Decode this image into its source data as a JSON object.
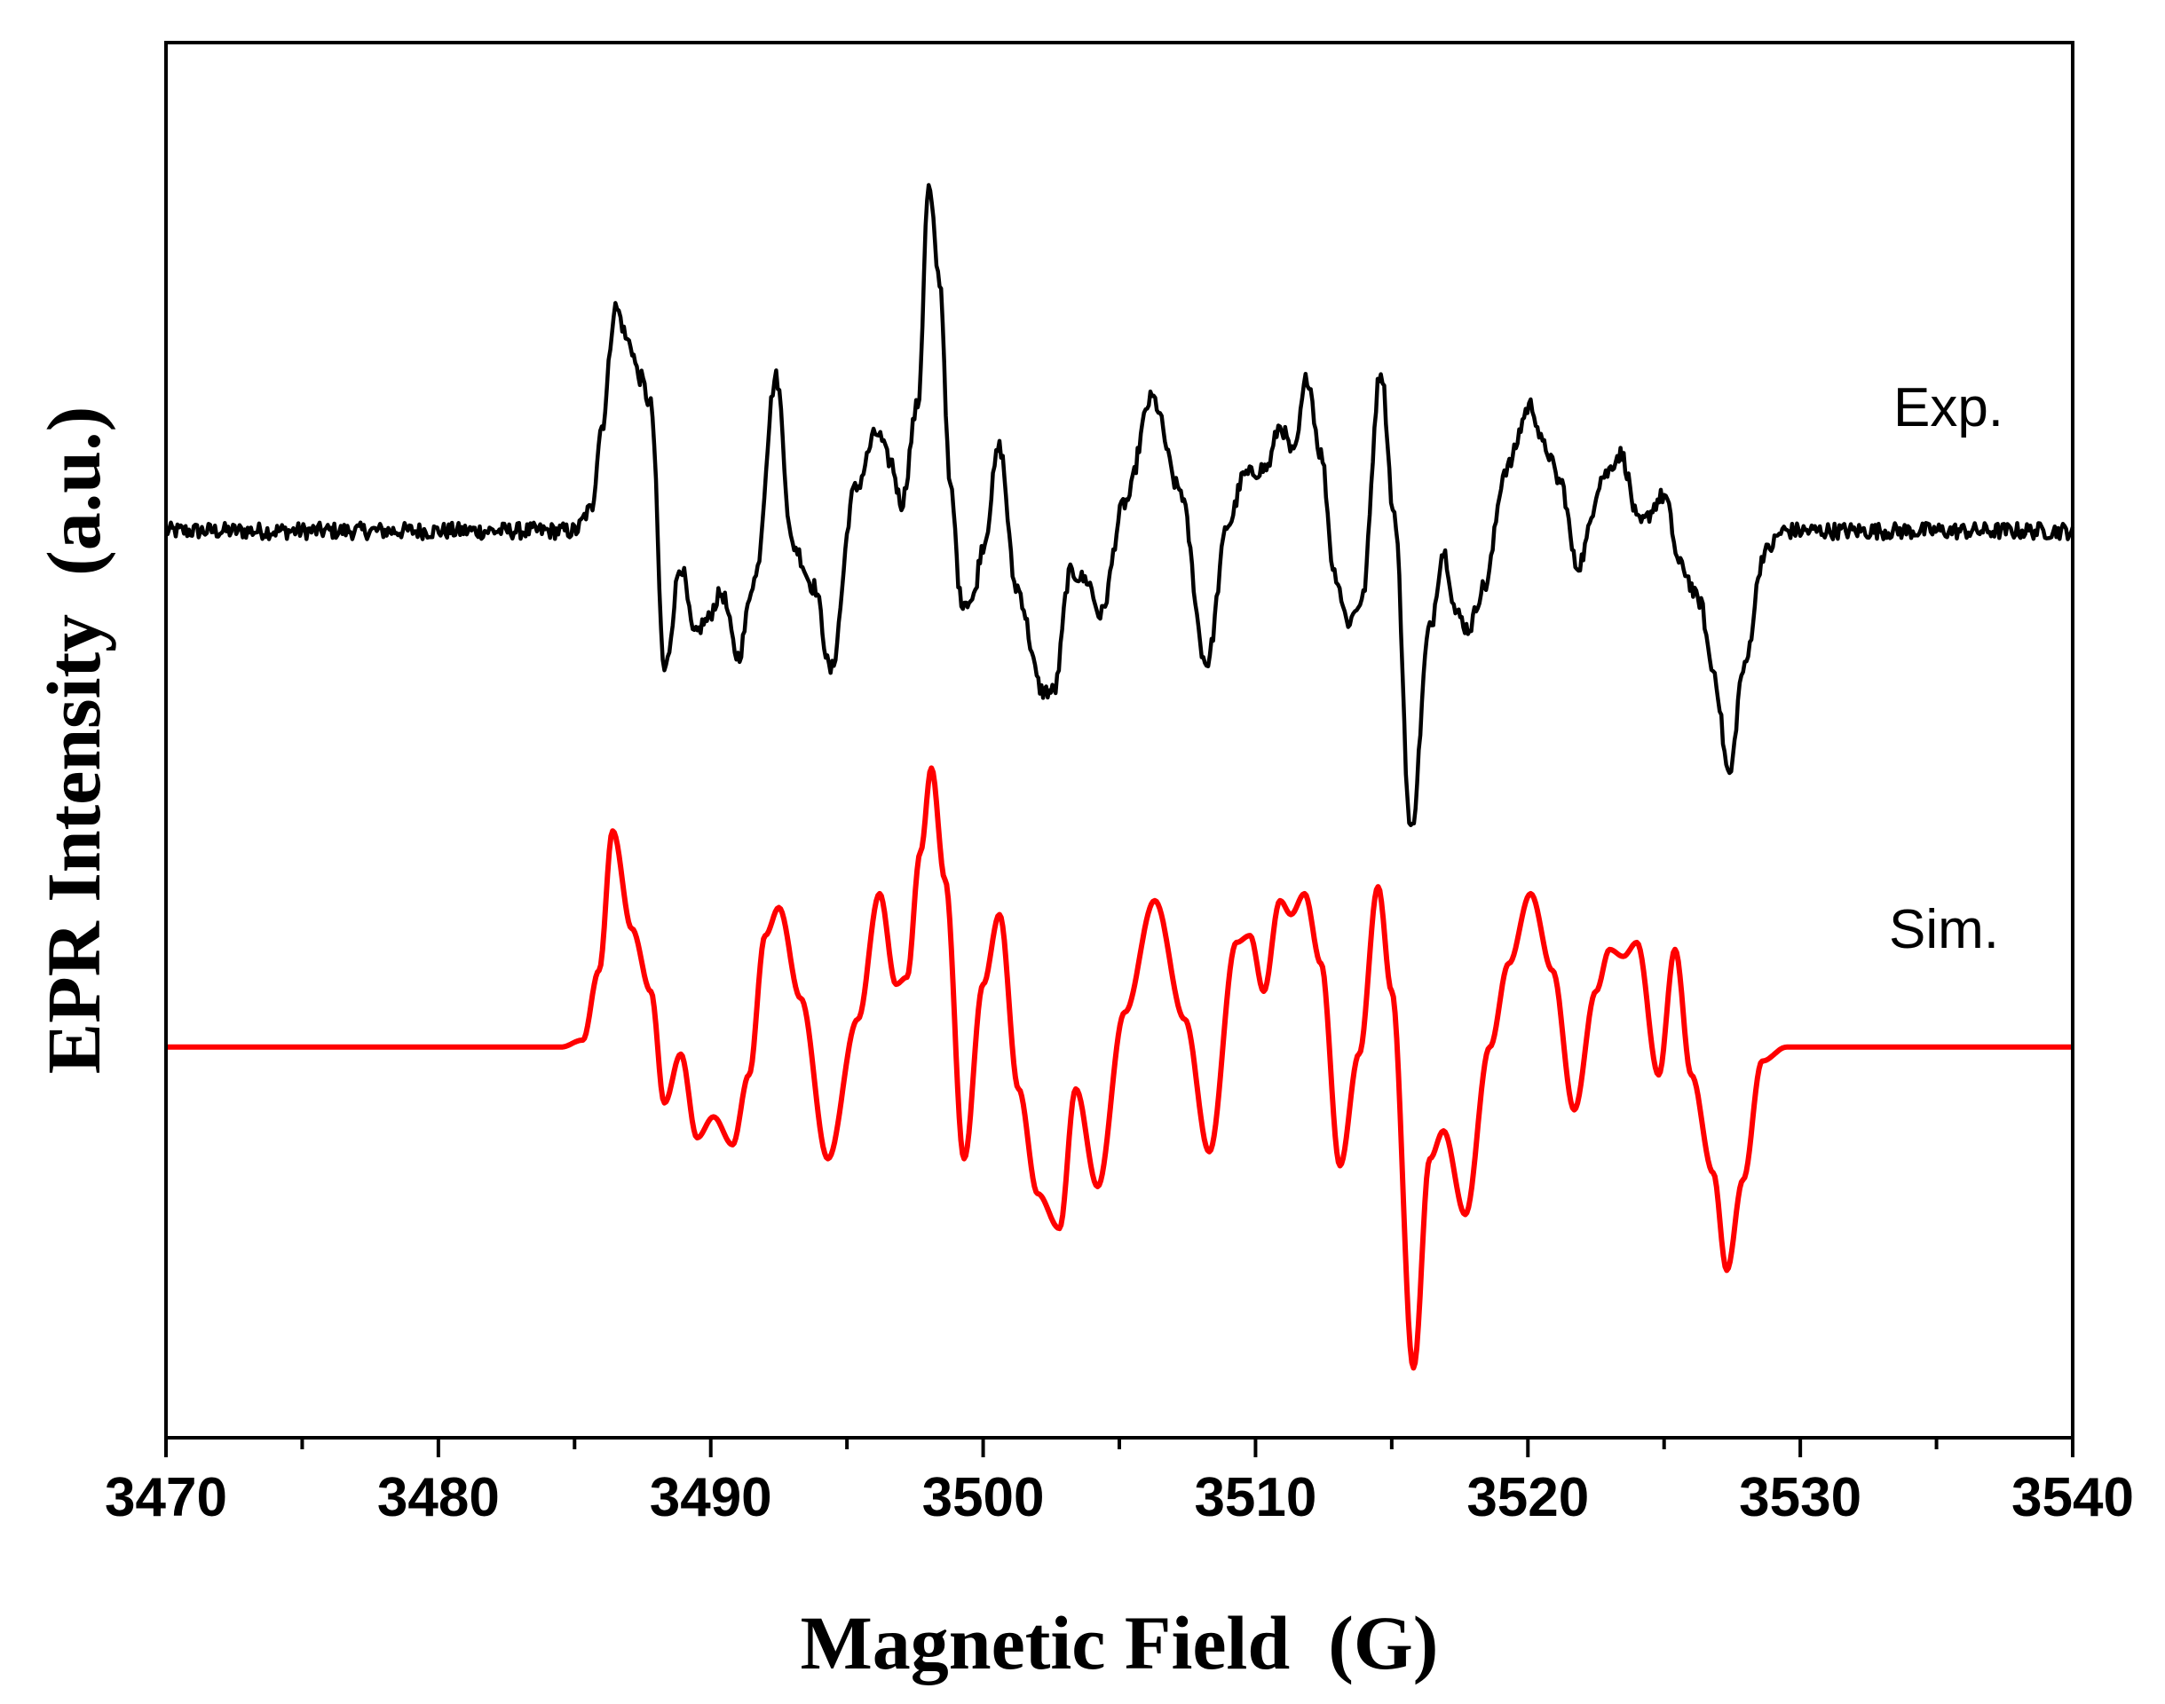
{
  "chart_data": {
    "type": "line",
    "title": "",
    "xlabel": "Magnetic Field  (G)",
    "ylabel": "EPR Intensity  (a.u.)",
    "xlim": [
      3470,
      3540
    ],
    "ylim": [
      -1.0,
      1.0
    ],
    "xticks": [
      3470,
      3480,
      3490,
      3500,
      3510,
      3520,
      3530,
      3540
    ],
    "minor_tick_step": 5,
    "y_ticks_shown": false,
    "grid": false,
    "series": [
      {
        "name": "Exp.",
        "color": "#000000",
        "baseline": 0.3,
        "noise": 0.012,
        "points": [
          [
            3470,
            0.3
          ],
          [
            3485.0,
            0.3
          ],
          [
            3485.6,
            0.33
          ],
          [
            3486.0,
            0.45
          ],
          [
            3486.5,
            0.62
          ],
          [
            3487.0,
            0.57
          ],
          [
            3487.4,
            0.52
          ],
          [
            3487.8,
            0.48
          ],
          [
            3488.3,
            0.1
          ],
          [
            3488.9,
            0.25
          ],
          [
            3489.4,
            0.15
          ],
          [
            3489.8,
            0.17
          ],
          [
            3490.4,
            0.21
          ],
          [
            3491.0,
            0.12
          ],
          [
            3491.6,
            0.23
          ],
          [
            3492.4,
            0.52
          ],
          [
            3493.0,
            0.28
          ],
          [
            3493.8,
            0.22
          ],
          [
            3494.4,
            0.1
          ],
          [
            3495.3,
            0.36
          ],
          [
            3496.1,
            0.44
          ],
          [
            3496.6,
            0.4
          ],
          [
            3497.0,
            0.34
          ],
          [
            3497.6,
            0.48
          ],
          [
            3498.0,
            0.79
          ],
          [
            3498.4,
            0.66
          ],
          [
            3498.8,
            0.36
          ],
          [
            3499.2,
            0.2
          ],
          [
            3499.6,
            0.2
          ],
          [
            3500.0,
            0.28
          ],
          [
            3500.6,
            0.42
          ],
          [
            3501.2,
            0.22
          ],
          [
            3502.2,
            0.07
          ],
          [
            3502.6,
            0.07
          ],
          [
            3503.2,
            0.24
          ],
          [
            3503.8,
            0.23
          ],
          [
            3504.3,
            0.18
          ],
          [
            3505.2,
            0.34
          ],
          [
            3506.2,
            0.49
          ],
          [
            3507.2,
            0.36
          ],
          [
            3508.2,
            0.11
          ],
          [
            3509.0,
            0.31
          ],
          [
            3509.6,
            0.38
          ],
          [
            3510.4,
            0.39
          ],
          [
            3510.9,
            0.45
          ],
          [
            3511.4,
            0.41
          ],
          [
            3511.9,
            0.52
          ],
          [
            3512.4,
            0.41
          ],
          [
            3512.9,
            0.24
          ],
          [
            3513.4,
            0.17
          ],
          [
            3513.9,
            0.2
          ],
          [
            3514.6,
            0.53
          ],
          [
            3515.1,
            0.32
          ],
          [
            3515.7,
            -0.13
          ],
          [
            3516.4,
            0.16
          ],
          [
            3516.9,
            0.27
          ],
          [
            3517.4,
            0.18
          ],
          [
            3517.8,
            0.16
          ],
          [
            3518.4,
            0.22
          ],
          [
            3519.2,
            0.39
          ],
          [
            3520.1,
            0.48
          ],
          [
            3520.6,
            0.42
          ],
          [
            3521.2,
            0.37
          ],
          [
            3521.8,
            0.25
          ],
          [
            3522.8,
            0.38
          ],
          [
            3523.4,
            0.41
          ],
          [
            3524.1,
            0.31
          ],
          [
            3525.0,
            0.35
          ],
          [
            3525.6,
            0.25
          ],
          [
            3526.3,
            0.2
          ],
          [
            3526.8,
            0.1
          ],
          [
            3527.4,
            -0.05
          ],
          [
            3527.9,
            0.1
          ],
          [
            3528.7,
            0.27
          ],
          [
            3529.4,
            0.3
          ],
          [
            3540,
            0.3
          ]
        ]
      },
      {
        "name": "Sim.",
        "color": "#ff0000",
        "baseline": -0.44,
        "noise": 0,
        "points": [
          [
            3470,
            -0.44
          ],
          [
            3484.5,
            -0.44
          ],
          [
            3485.3,
            -0.43
          ],
          [
            3485.9,
            -0.33
          ],
          [
            3486.4,
            -0.13
          ],
          [
            3487.1,
            -0.27
          ],
          [
            3487.8,
            -0.36
          ],
          [
            3488.3,
            -0.52
          ],
          [
            3488.9,
            -0.45
          ],
          [
            3489.5,
            -0.57
          ],
          [
            3490.1,
            -0.54
          ],
          [
            3490.8,
            -0.58
          ],
          [
            3491.4,
            -0.48
          ],
          [
            3492.0,
            -0.28
          ],
          [
            3492.5,
            -0.24
          ],
          [
            3493.3,
            -0.37
          ],
          [
            3494.3,
            -0.6
          ],
          [
            3495.4,
            -0.4
          ],
          [
            3496.2,
            -0.22
          ],
          [
            3496.8,
            -0.35
          ],
          [
            3497.2,
            -0.34
          ],
          [
            3497.7,
            -0.16
          ],
          [
            3498.1,
            -0.04
          ],
          [
            3498.6,
            -0.2
          ],
          [
            3499.3,
            -0.6
          ],
          [
            3500.0,
            -0.35
          ],
          [
            3500.6,
            -0.25
          ],
          [
            3501.3,
            -0.5
          ],
          [
            3502.0,
            -0.65
          ],
          [
            3502.8,
            -0.7
          ],
          [
            3503.4,
            -0.5
          ],
          [
            3504.2,
            -0.64
          ],
          [
            3505.2,
            -0.39
          ],
          [
            3506.3,
            -0.23
          ],
          [
            3507.4,
            -0.4
          ],
          [
            3508.3,
            -0.59
          ],
          [
            3509.3,
            -0.29
          ],
          [
            3509.8,
            -0.28
          ],
          [
            3510.3,
            -0.36
          ],
          [
            3510.9,
            -0.23
          ],
          [
            3511.3,
            -0.25
          ],
          [
            3511.8,
            -0.22
          ],
          [
            3512.4,
            -0.32
          ],
          [
            3513.1,
            -0.61
          ],
          [
            3513.8,
            -0.45
          ],
          [
            3514.5,
            -0.21
          ],
          [
            3515.0,
            -0.36
          ],
          [
            3515.8,
            -0.9
          ],
          [
            3516.4,
            -0.6
          ],
          [
            3516.9,
            -0.56
          ],
          [
            3517.7,
            -0.68
          ],
          [
            3518.6,
            -0.44
          ],
          [
            3519.3,
            -0.32
          ],
          [
            3520.1,
            -0.22
          ],
          [
            3520.9,
            -0.33
          ],
          [
            3521.7,
            -0.53
          ],
          [
            3522.5,
            -0.36
          ],
          [
            3523.0,
            -0.3
          ],
          [
            3523.5,
            -0.31
          ],
          [
            3524.0,
            -0.29
          ],
          [
            3524.8,
            -0.48
          ],
          [
            3525.4,
            -0.3
          ],
          [
            3526.0,
            -0.48
          ],
          [
            3526.8,
            -0.62
          ],
          [
            3527.3,
            -0.76
          ],
          [
            3527.9,
            -0.63
          ],
          [
            3528.6,
            -0.46
          ],
          [
            3529.5,
            -0.44
          ],
          [
            3540,
            -0.44
          ]
        ]
      }
    ]
  }
}
